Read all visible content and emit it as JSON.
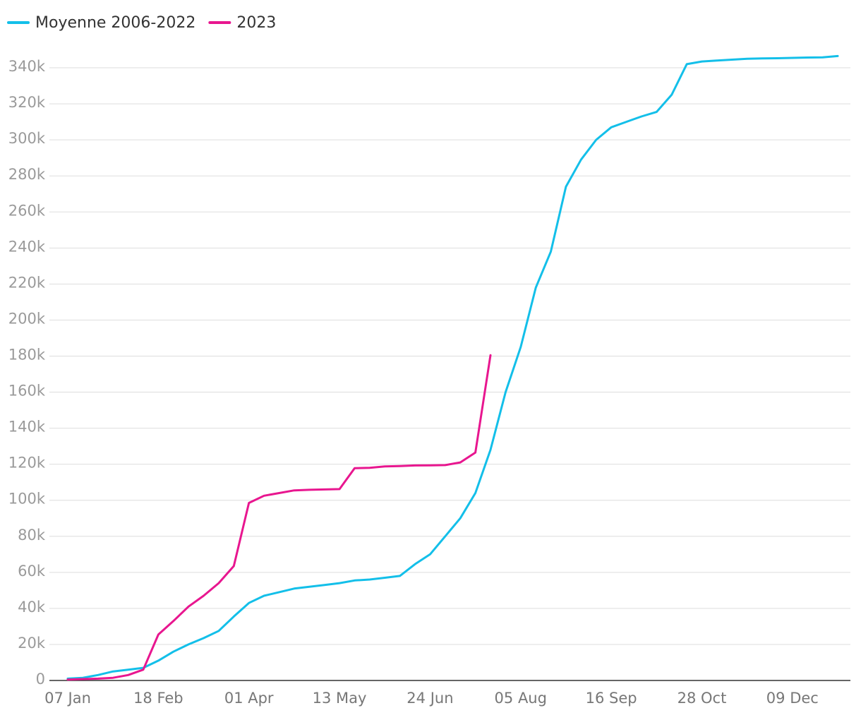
{
  "chart_data": {
    "type": "line",
    "categories": [
      "07 Jan",
      null,
      null,
      null,
      null,
      null,
      "18 Feb",
      null,
      null,
      null,
      null,
      null,
      "01 Apr",
      null,
      null,
      null,
      null,
      null,
      "13 May",
      null,
      null,
      null,
      null,
      null,
      "24 Jun",
      null,
      null,
      null,
      null,
      null,
      "05 Aug",
      null,
      null,
      null,
      null,
      null,
      "16 Sep",
      null,
      null,
      null,
      null,
      null,
      "28 Oct",
      null,
      null,
      null,
      null,
      null,
      "09 Dec",
      null,
      null,
      null
    ],
    "series": [
      {
        "name": "Moyenne 2006-2022",
        "color": "#13bfe9",
        "values": [
          1000,
          1500,
          3000,
          5000,
          6000,
          7000,
          11000,
          16000,
          20000,
          23500,
          27500,
          35500,
          43000,
          47000,
          49000,
          51000,
          52000,
          53000,
          54000,
          55500,
          56000,
          57000,
          58000,
          64500,
          70000,
          80000,
          90000,
          104000,
          128000,
          160000,
          185000,
          218000,
          238000,
          274000,
          289000,
          300000,
          307000,
          310000,
          313000,
          315500,
          325000,
          342000,
          343500,
          344000,
          344500,
          345000,
          345200,
          345300,
          345500,
          345700,
          345800,
          346500
        ]
      },
      {
        "name": "2023",
        "color": "#e8168f",
        "values": [
          500,
          800,
          1000,
          1500,
          3000,
          6000,
          25500,
          33000,
          41000,
          47000,
          54000,
          63500,
          98500,
          102500,
          104000,
          105500,
          105800,
          106000,
          106200,
          117800,
          118000,
          118800,
          119000,
          119300,
          119400,
          119500,
          121000,
          126500,
          180500,
          null,
          null,
          null,
          null,
          null,
          null,
          null,
          null,
          null,
          null,
          null,
          null,
          null,
          null,
          null,
          null,
          null,
          null,
          null,
          null,
          null,
          null,
          null
        ]
      }
    ],
    "ylim": [
      0,
      350000
    ],
    "yticks": [
      0,
      {
        "value": 20000,
        "label": "20k"
      },
      {
        "value": 40000,
        "label": "40k"
      },
      {
        "value": 60000,
        "label": "60k"
      },
      {
        "value": 80000,
        "label": "80k"
      },
      {
        "value": 100000,
        "label": "100k"
      },
      {
        "value": 120000,
        "label": "120k"
      },
      {
        "value": 140000,
        "label": "140k"
      },
      {
        "value": 160000,
        "label": "160k"
      },
      {
        "value": 180000,
        "label": "180k"
      },
      {
        "value": 200000,
        "label": "200k"
      },
      {
        "value": 220000,
        "label": "220k"
      },
      {
        "value": 240000,
        "label": "240k"
      },
      {
        "value": 260000,
        "label": "260k"
      },
      {
        "value": 280000,
        "label": "280k"
      },
      {
        "value": 300000,
        "label": "300k"
      },
      {
        "value": 320000,
        "label": "320k"
      },
      {
        "value": 340000,
        "label": "340k"
      }
    ],
    "grid": true,
    "legend": "top-left"
  }
}
